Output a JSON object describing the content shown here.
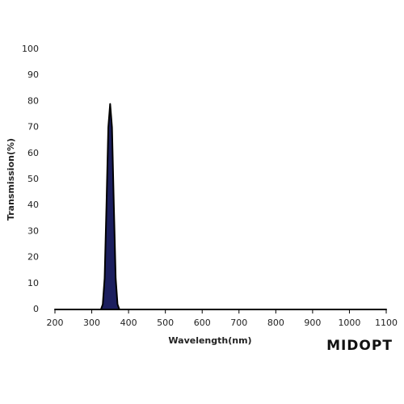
{
  "chart_data": {
    "type": "area",
    "x_label": "Wavelength(nm)",
    "y_label": "Transmission(%)",
    "x": [
      200,
      325,
      330,
      335,
      340,
      345,
      350,
      355,
      360,
      365,
      370,
      375,
      1100
    ],
    "values": [
      0,
      0,
      2,
      12,
      40,
      70,
      79,
      70,
      40,
      12,
      2,
      0,
      0
    ],
    "color": "#1c1f5e",
    "line_color": "#000000",
    "xlim": [
      200,
      1100
    ],
    "xticks": [
      200,
      300,
      400,
      500,
      600,
      700,
      800,
      900,
      1000,
      1100
    ],
    "ylim": [
      0,
      100
    ],
    "yticks": [
      0,
      10,
      20,
      30,
      40,
      50,
      60,
      70,
      80,
      90,
      100
    ],
    "grid": false
  },
  "logo": "MIDOPT"
}
